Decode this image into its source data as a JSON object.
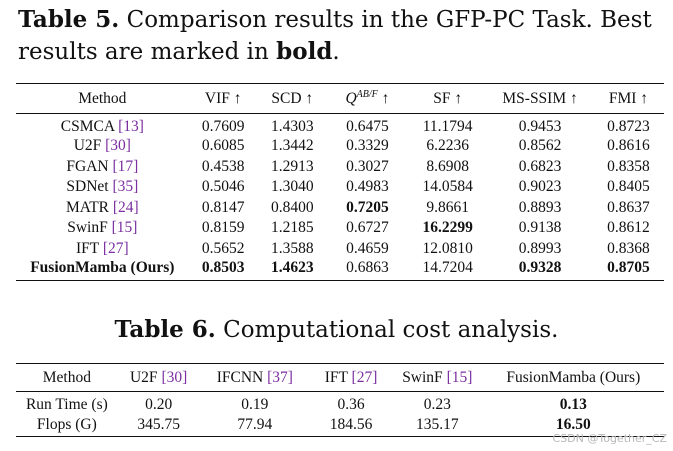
{
  "table5": {
    "caption_label": "Table 5.",
    "caption_text": " Comparison results in the GFP-PC Task. Best results are marked in ",
    "caption_bold": "bold",
    "caption_end": ".",
    "headers": [
      "Method",
      "VIF ↑",
      "SCD ↑",
      "Q^{AB/F} ↑",
      "SF ↑",
      "MS-SSIM ↑",
      "FMI ↑"
    ],
    "header_q_base": "Q",
    "header_q_sup": "AB/F",
    "header_q_arrow": " ↑",
    "rows": [
      {
        "method": "CSMCA",
        "ref": "[13]",
        "values": [
          "0.7609",
          "1.4303",
          "0.6475",
          "11.1794",
          "0.9453",
          "0.8723"
        ]
      },
      {
        "method": "U2F",
        "ref": "[30]",
        "values": [
          "0.6085",
          "1.3442",
          "0.3329",
          "6.2236",
          "0.8562",
          "0.8616"
        ]
      },
      {
        "method": "FGAN",
        "ref": "[17]",
        "values": [
          "0.4538",
          "1.2913",
          "0.3027",
          "8.6908",
          "0.6823",
          "0.8358"
        ]
      },
      {
        "method": "SDNet",
        "ref": "[35]",
        "values": [
          "0.5046",
          "1.3040",
          "0.4983",
          "14.0584",
          "0.9023",
          "0.8405"
        ]
      },
      {
        "method": "MATR",
        "ref": "[24]",
        "values": [
          "0.8147",
          "0.8400",
          "0.7205",
          "9.8661",
          "0.8893",
          "0.8637"
        ]
      },
      {
        "method": "SwinF",
        "ref": "[15]",
        "values": [
          "0.8159",
          "1.2185",
          "0.6727",
          "16.2299",
          "0.9138",
          "0.8612"
        ]
      },
      {
        "method": "IFT",
        "ref": "[27]",
        "values": [
          "0.5652",
          "1.3588",
          "0.4659",
          "12.0810",
          "0.8993",
          "0.8368"
        ]
      },
      {
        "method": "FusionMamba (Ours)",
        "ref": "",
        "values": [
          "0.8503",
          "1.4623",
          "0.6863",
          "14.7204",
          "0.9328",
          "0.8705"
        ]
      }
    ]
  },
  "table6": {
    "caption_label": "Table 6.",
    "caption_text": " Computational cost analysis.",
    "headers": [
      {
        "name": "Method",
        "ref": ""
      },
      {
        "name": "U2F",
        "ref": "[30]"
      },
      {
        "name": "IFCNN",
        "ref": "[37]"
      },
      {
        "name": "IFT",
        "ref": "[27]"
      },
      {
        "name": "SwinF",
        "ref": "[15]"
      },
      {
        "name": "FusionMamba (Ours)",
        "ref": ""
      }
    ],
    "rows": [
      {
        "label": "Run Time (s)",
        "values": [
          "0.20",
          "0.19",
          "0.36",
          "0.23",
          "0.13"
        ]
      },
      {
        "label": "Flops (G)",
        "values": [
          "345.75",
          "77.94",
          "184.56",
          "135.17",
          "16.50"
        ]
      }
    ]
  },
  "watermark": "CSDN @Together_CZ"
}
